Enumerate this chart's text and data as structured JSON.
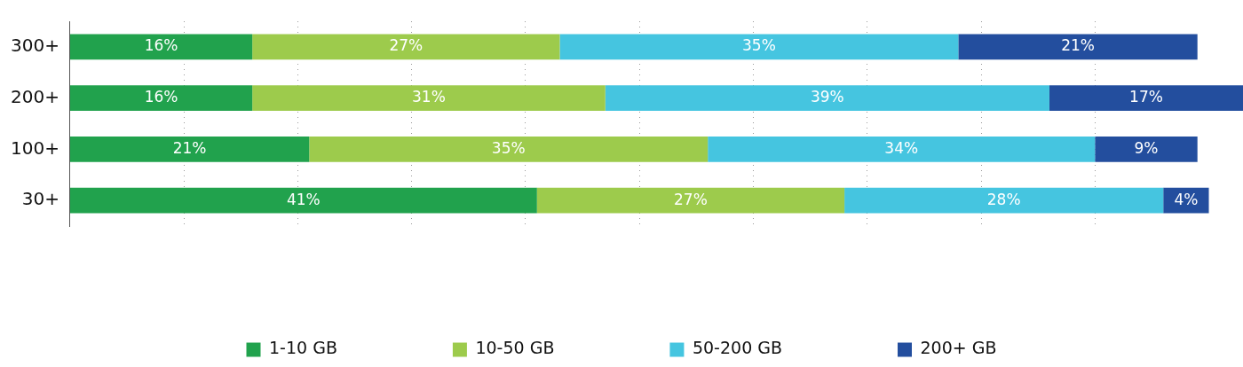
{
  "chart_data": {
    "type": "bar",
    "orientation": "horizontal",
    "stacked": true,
    "categories": [
      "300+",
      "200+",
      "100+",
      "30+"
    ],
    "series": [
      {
        "name": "1-10 GB",
        "color": "#21a24d",
        "values": [
          16,
          16,
          21,
          41
        ],
        "value_labels": [
          "16%",
          "16%",
          "21%",
          "41%"
        ]
      },
      {
        "name": "10-50 GB",
        "color": "#9dcb4c",
        "values": [
          27,
          31,
          35,
          27
        ],
        "value_labels": [
          "27%",
          "31%",
          "35%",
          "27%"
        ]
      },
      {
        "name": "50-200 GB",
        "color": "#45c5e0",
        "values": [
          35,
          39,
          34,
          28
        ],
        "value_labels": [
          "35%",
          "39%",
          "34%",
          "28%"
        ]
      },
      {
        "name": "200+ GB",
        "color": "#234e9e",
        "values": [
          21,
          17,
          9,
          4
        ],
        "value_labels": [
          "21%",
          "17%",
          "9%",
          "4%"
        ]
      }
    ],
    "xlim": [
      0,
      103
    ],
    "xticks": [
      {
        "value": 10,
        "label": null
      },
      {
        "value": 20,
        "label": null
      },
      {
        "value": 30,
        "label": null
      },
      {
        "value": 40,
        "label": null
      },
      {
        "value": 50,
        "label": null
      },
      {
        "value": 60,
        "label": null
      },
      {
        "value": 70,
        "label": null
      },
      {
        "value": 80,
        "label": null
      },
      {
        "value": 90,
        "label": null
      }
    ],
    "grid": "x",
    "tick_labels": "y",
    "legend": "bottom"
  }
}
